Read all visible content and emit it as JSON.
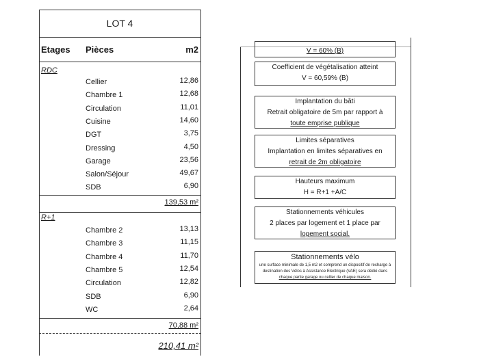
{
  "table": {
    "title": "LOT 4",
    "headers": {
      "etages": "Etages",
      "pieces": "Pièces",
      "m2": "m2"
    },
    "floors": [
      {
        "name": "RDC",
        "rooms": [
          {
            "name": "Cellier",
            "area": "12,86"
          },
          {
            "name": "Chambre 1",
            "area": "12,68"
          },
          {
            "name": "Circulation",
            "area": "11,01"
          },
          {
            "name": "Cuisine",
            "area": "14,60"
          },
          {
            "name": "DGT",
            "area": "3,75"
          },
          {
            "name": "Dressing",
            "area": "4,50"
          },
          {
            "name": "Garage",
            "area": "23,56"
          },
          {
            "name": "Salon/Séjour",
            "area": "49,67"
          },
          {
            "name": "SDB",
            "area": "6,90"
          }
        ],
        "subtotal": "139,53 m²"
      },
      {
        "name": "R+1",
        "rooms": [
          {
            "name": "Chambre 2",
            "area": "13,13"
          },
          {
            "name": "Chambre 3",
            "area": "11,15"
          },
          {
            "name": "Chambre 4",
            "area": "11,70"
          },
          {
            "name": "Chambre 5",
            "area": "12,54"
          },
          {
            "name": "Circulation",
            "area": "12,82"
          },
          {
            "name": "SDB",
            "area": "6,90"
          },
          {
            "name": "WC",
            "area": "2,64"
          }
        ],
        "subtotal": "70,88 m²"
      }
    ],
    "total": "210,41 m²"
  },
  "rules": [
    {
      "lines": [
        "V = 60% (B)"
      ]
    },
    {
      "lines": [
        "Coefficient de végétalisation atteint",
        "V = 60,59% (B)"
      ]
    },
    {
      "lines": [
        "Implantation du bâti",
        "Retrait obligatoire de 5m par rapport à",
        "toute emprise publique"
      ]
    },
    {
      "lines": [
        "Limites séparatives",
        "Implantation en limites séparatives en",
        "retrait de 2m obligatoire"
      ]
    },
    {
      "lines": [
        "Hauteurs maximum",
        "H = R+1 +A/C"
      ]
    },
    {
      "lines": [
        "Stationnements véhicules",
        "2 places par logement et 1 place par",
        "logement social."
      ]
    },
    {
      "lines": [
        "Stationnements vélo",
        "une surface minimale de 1,5 m2 et comprend un dispositif de recharge à destination des Vélos à Assistance Electrique (VAE) sera dédié dans",
        "chaque partie garage ou cellier de chaque maison."
      ]
    }
  ]
}
